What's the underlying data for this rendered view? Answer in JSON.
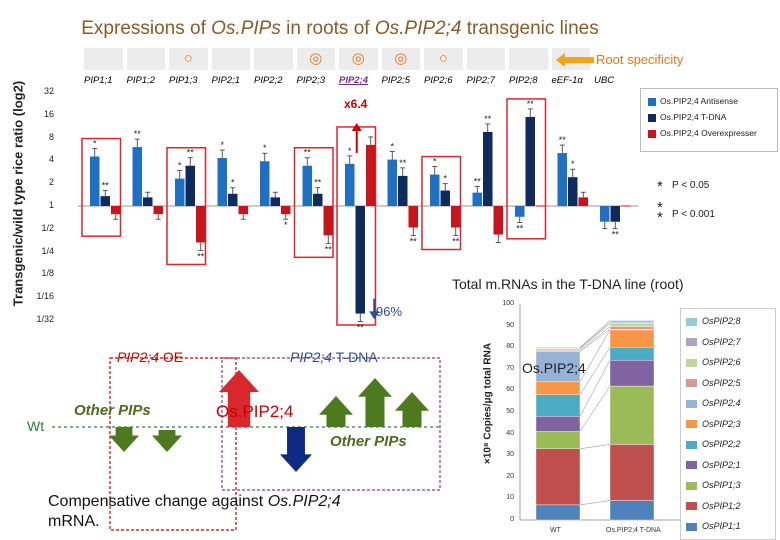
{
  "title_parts": {
    "p1": "Expressions of ",
    "p2": "Os.PIPs",
    "p3": " in roots of ",
    "p4": "Os.PIP2;4",
    "p5": " transgenic lines"
  },
  "root_specificity": {
    "label": "Root specificity",
    "marks": [
      "○",
      "◎",
      "◎",
      "◎",
      "○"
    ]
  },
  "annotations": {
    "fold_up": "x6.4",
    "percent_down": "96%",
    "p005": "P < 0.05",
    "p0001": "P < 0.001",
    "star": "*",
    "star2": "**"
  },
  "diagram": {
    "oe_gene": "PIP2;4",
    "oe_suffix": " OE",
    "tdna_gene": "PIP2;4",
    "tdna_suffix": " T-DNA",
    "wt": "Wt",
    "other_pips_left": "Other PIPs",
    "center_gene": "Os.PIP2;4",
    "other_pips_right": "Other PIPs"
  },
  "caption": {
    "line1a": "Compensative change against ",
    "line1b": "Os.PIP2;4",
    "line2": "mRNA."
  },
  "colors": {
    "antisense": "#1f6fc5",
    "tdna": "#0f2a5c",
    "overexpressor": "#c8141b",
    "frame": "#d9272e",
    "arrow_green": "#4d7a1e",
    "arrow_blue": "#0f2a82"
  },
  "chart_data": [
    {
      "type": "bar",
      "title": "Expressions of Os.PIPs in roots of Os.PIP2;4 transgenic lines",
      "ylabel": "Transgenic/wild type rice ratio (log2)",
      "yscale": "log2",
      "ylim": [
        0.03125,
        32
      ],
      "yticks": [
        32,
        16,
        8,
        4,
        2,
        1,
        0.5,
        0.25,
        0.125,
        0.0625,
        0.03125
      ],
      "ytick_labels": [
        "32",
        "16",
        "8",
        "4",
        "2",
        "1",
        "1/2",
        "1/4",
        "1/8",
        "1/16",
        "1/32"
      ],
      "categories": [
        "PIP1;1",
        "PIP1;2",
        "PIP1;3",
        "PIP2;1",
        "PIP2;2",
        "PIP2;3",
        "PIP2;4",
        "PIP2;5",
        "PIP2;6",
        "PIP2;7",
        "PIP2;8",
        "eEF-1α",
        "UBC"
      ],
      "highlighted_category": "PIP2;4",
      "boxed_categories": [
        "PIP1;1",
        "PIP1;3",
        "PIP2;3",
        "PIP2;4",
        "PIP2;6",
        "PIP2;8"
      ],
      "series": [
        {
          "name": "Os.PIP2;4 Antisense",
          "values": [
            4.5,
            6.0,
            2.3,
            4.3,
            3.9,
            3.4,
            3.6,
            4.1,
            2.6,
            1.5,
            0.72,
            5.0,
            0.62
          ]
        },
        {
          "name": "Os.PIP2;4 T-DNA",
          "values": [
            1.35,
            1.3,
            3.4,
            1.45,
            1.3,
            1.45,
            0.038,
            2.5,
            1.6,
            9.5,
            15,
            2.4,
            0.62
          ]
        },
        {
          "name": "Os.PIP2;4 Overexpresser",
          "values": [
            0.78,
            0.78,
            0.33,
            0.78,
            0.78,
            0.41,
            6.4,
            0.52,
            0.52,
            0.42,
            0.0,
            1.3,
            0.0
          ]
        }
      ],
      "significance": [
        [
          "*",
          "**",
          ""
        ],
        [
          "**",
          "",
          ""
        ],
        [
          "*",
          "**",
          "**"
        ],
        [
          "*",
          "*",
          ""
        ],
        [
          "*",
          "",
          "*"
        ],
        [
          "**",
          "**",
          "**"
        ],
        [
          "*",
          "**",
          ""
        ],
        [
          "*",
          "**",
          "**"
        ],
        [
          "*",
          "*",
          "**"
        ],
        [
          "**",
          "**",
          ""
        ],
        [
          "**",
          "**",
          ""
        ],
        [
          "**",
          "*",
          ""
        ],
        [
          "",
          "**",
          "**"
        ]
      ],
      "legend": [
        "Os.PIP2;4 Antisense",
        "Os.PIP2;4 T-DNA",
        "Os.PIP2;4 Overexpresser"
      ]
    },
    {
      "type": "bar",
      "stacked": true,
      "title": "Total m.RNAs in the T-DNA line (root)",
      "ylabel": "×10⁸ Copies/μg total RNA",
      "ylim": [
        0,
        100
      ],
      "yticks": [
        0,
        10,
        20,
        30,
        40,
        50,
        60,
        70,
        80,
        90,
        100
      ],
      "categories": [
        "WT",
        "Os.PIP2;4 T-DNA"
      ],
      "annotation": "Os.PIP2;4",
      "series": [
        {
          "name": "OsPIP1;1",
          "color": "#4f81bd",
          "values": [
            7,
            9
          ]
        },
        {
          "name": "OsPIP1;2",
          "color": "#c0504d",
          "values": [
            26,
            26
          ]
        },
        {
          "name": "OsPIP1;3",
          "color": "#9bbb59",
          "values": [
            8,
            27
          ]
        },
        {
          "name": "OsPIP2;1",
          "color": "#8064a2",
          "values": [
            7,
            12
          ]
        },
        {
          "name": "OsPIP2;2",
          "color": "#4bacc6",
          "values": [
            10,
            6
          ]
        },
        {
          "name": "OsPIP2;3",
          "color": "#f79646",
          "values": [
            6,
            8
          ]
        },
        {
          "name": "OsPIP2;4",
          "color": "#95b3d7",
          "values": [
            14,
            0.3
          ]
        },
        {
          "name": "OsPIP2;5",
          "color": "#d99694",
          "values": [
            0.5,
            1.2
          ]
        },
        {
          "name": "OsPIP2;6",
          "color": "#c3d69b",
          "values": [
            0.8,
            1.5
          ]
        },
        {
          "name": "OsPIP2;7",
          "color": "#b2a1c7",
          "values": [
            0.3,
            0.6
          ]
        },
        {
          "name": "OsPIP2;8",
          "color": "#92cddc",
          "values": [
            0.4,
            0.8
          ]
        }
      ],
      "legend_order": [
        "OsPIP2;8",
        "OsPIP2;7",
        "OsPIP2;6",
        "OsPIP2;5",
        "OsPIP2;4",
        "OsPIP2;3",
        "OsPIP2;2",
        "OsPIP2;1",
        "OsPIP1;3",
        "OsPIP1;2",
        "OsPIP1;1"
      ]
    }
  ]
}
